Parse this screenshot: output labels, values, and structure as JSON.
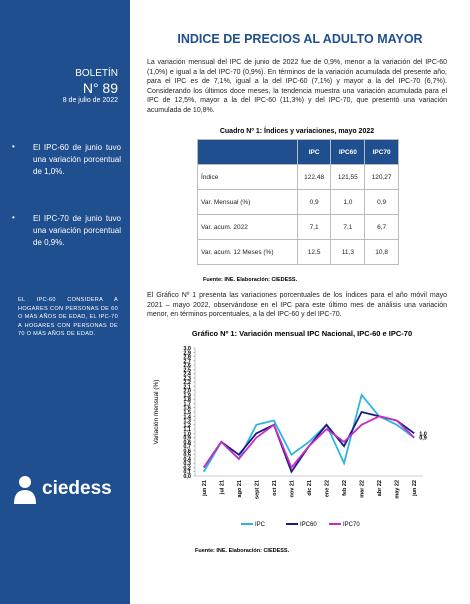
{
  "sidebar": {
    "label": "BOLETÍN",
    "number": "N° 89",
    "date": "8 de julio de 2022",
    "bullets": [
      "El IPC-60 de junio tuvo una variación porcentual de 1,0%.",
      "El IPC-70 de junio tuvo una variación porcentual de 0,9%."
    ],
    "note": "EL IPC-60 CONSIDERA A HOGARES CON PERSONAS DE 60 O MÁS AÑOS DE EDAD, EL IPC-70 A HOGARES CON PERSONAS DE 70 O MÁS AÑOS DE EDAD.",
    "logo": "ciedess"
  },
  "header": {
    "title": "INDICE DE PRECIOS AL ADULTO MAYOR"
  },
  "paragraphs": [
    "La variación mensual del IPC de junio de 2022 fue de 0,9%, menor a la variación del IPC-60 (1,0%) e igual a la del IPC-70 (0,9%). En términos de la variación acumulada del presente año, para el IPC es de 7,1%, igual a la del IPC-60 (7,1%) y mayor a la del IPC-70 (6,7%). Considerando los últimos doce meses, la tendencia muestra una variación acumulada para el IPC de 12,5%, mayor a la del IPC-60 (11,3%) y del IPC-70, que presentó una variación acumulada de 10,8%.",
    "El Gráfico Nº 1 presenta las variaciones porcentuales de los índices para el año móvil mayo 2021 – mayo 2022, observándose en el IPC para este último mes de análisis una variación menor, en términos porcentuales, a la del IPC-60 y del IPC-70."
  ],
  "table": {
    "caption": "Cuadro Nº 1: Índices y variaciones, mayo 2022",
    "headers": [
      "IPC",
      "IPC60",
      "IPC70"
    ],
    "rows": [
      [
        "Índice",
        "122,48",
        "121,55",
        "120,27"
      ],
      [
        "Var. Mensual (%)",
        "0,9",
        "1,0",
        "0,9"
      ],
      [
        "Var. acum. 2022",
        "7,1",
        "7,1",
        "6,7"
      ],
      [
        "Var. acum. 12 Meses (%)",
        "12,5",
        "11,3",
        "10,8"
      ]
    ],
    "source": "Fuente: INE. Elaboración: CIEDESS."
  },
  "chart_data": {
    "type": "line",
    "title": "Gráfico Nº 1: Variación mensual IPC Nacional, IPC-60 e IPC-70",
    "y_label": "Variación mensual (%)",
    "categories": [
      "jun 21",
      "jul 21",
      "ago 21",
      "sept 21",
      "oct 21",
      "nov 21",
      "dic 21",
      "ene 22",
      "feb 22",
      "mar 22",
      "abr 22",
      "may 22",
      "jun 22"
    ],
    "series": [
      {
        "name": "IPC",
        "color": "#2bb5e6",
        "values": [
          0.1,
          0.8,
          0.4,
          1.2,
          1.3,
          0.5,
          0.8,
          1.2,
          0.3,
          1.9,
          1.4,
          1.2,
          0.9
        ]
      },
      {
        "name": "IPC60",
        "color": "#1a1a7e",
        "values": [
          0.2,
          0.8,
          0.5,
          1.0,
          1.2,
          0.1,
          0.7,
          1.2,
          0.7,
          1.5,
          1.4,
          1.3,
          1.0
        ],
        "value_labels": [
          null,
          null,
          null,
          null,
          null,
          null,
          null,
          null,
          null,
          null,
          null,
          null,
          "1,0"
        ]
      },
      {
        "name": "IPC70",
        "color": "#c42fc4",
        "values": [
          0.2,
          0.8,
          0.4,
          0.9,
          1.2,
          0.2,
          0.7,
          1.1,
          0.8,
          1.2,
          1.4,
          1.3,
          0.9
        ],
        "value_labels": [
          null,
          null,
          null,
          null,
          null,
          null,
          null,
          null,
          null,
          null,
          null,
          null,
          "0,9"
        ]
      }
    ],
    "ylim": [
      0,
      3
    ],
    "yticks": [
      {
        "value": 0,
        "label": "0,0"
      },
      {
        "value": 0.1,
        "label": "0,1"
      },
      {
        "value": 0.2,
        "label": "0,2"
      },
      {
        "value": 0.3,
        "label": "0,3"
      },
      {
        "value": 0.4,
        "label": "0,4"
      },
      {
        "value": 0.5,
        "label": "0,5"
      },
      {
        "value": 0.6,
        "label": "0,6"
      },
      {
        "value": 0.7,
        "label": "0,7"
      },
      {
        "value": 0.8,
        "label": "0,8"
      },
      {
        "value": 0.9,
        "label": "0,9"
      },
      {
        "value": 1,
        "label": "1,0"
      },
      {
        "value": 1.1,
        "label": "1,1"
      },
      {
        "value": 1.2,
        "label": "1,2"
      },
      {
        "value": 1.3,
        "label": "1,3"
      },
      {
        "value": 1.4,
        "label": "1,4"
      },
      {
        "value": 1.5,
        "label": "1,5"
      },
      {
        "value": 1.6,
        "label": "1,6"
      },
      {
        "value": 1.7,
        "label": "1,7"
      },
      {
        "value": 1.8,
        "label": "1,8"
      },
      {
        "value": 1.9,
        "label": "1,9"
      },
      {
        "value": 2,
        "label": "2,0"
      },
      {
        "value": 2.1,
        "label": "2,1"
      },
      {
        "value": 2.2,
        "label": "2,2"
      },
      {
        "value": 2.3,
        "label": "2,3"
      },
      {
        "value": 2.4,
        "label": "2,4"
      },
      {
        "value": 2.5,
        "label": "2,5"
      },
      {
        "value": 2.6,
        "label": "2,6"
      },
      {
        "value": 2.7,
        "label": "2,7"
      },
      {
        "value": 2.8,
        "label": "2,8"
      },
      {
        "value": 2.9,
        "label": "2,9"
      },
      {
        "value": 3,
        "label": "3,0"
      }
    ],
    "grid": false,
    "source": "Fuente: INE. Elaboración: CIEDESS."
  }
}
